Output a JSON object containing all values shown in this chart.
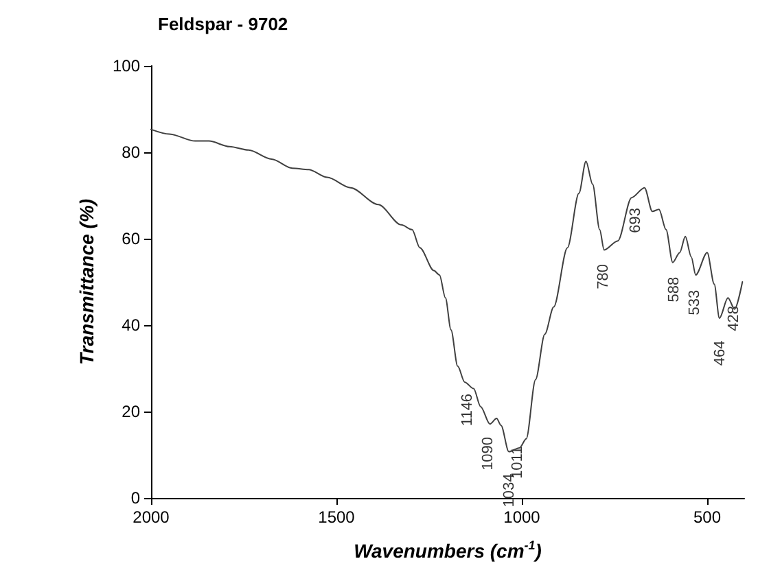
{
  "chart_data": {
    "type": "line",
    "title": "Feldspar - 9702",
    "xlabel": "Wavenumbers (cm$^{-1}$)",
    "ylabel": "Transmittance (%)",
    "x": [
      2000,
      1950,
      1881,
      1844,
      1788,
      1737,
      1675,
      1619,
      1575,
      1525,
      1462,
      1387,
      1325,
      1296,
      1275,
      1237,
      1222,
      1206,
      1191,
      1173,
      1154,
      1130,
      1111,
      1086,
      1068,
      1056,
      1035,
      1006,
      988,
      963,
      938,
      914,
      877,
      846,
      827,
      809,
      790,
      778,
      741,
      704,
      669,
      648,
      630,
      611,
      593,
      574,
      559,
      543,
      531,
      500,
      481,
      467,
      444,
      426,
      405
    ],
    "series": [
      {
        "color": "#404040",
        "values": [
          85.3,
          84.2,
          82.6,
          82.6,
          81.3,
          80.5,
          78.4,
          76.3,
          76.0,
          74.2,
          71.8,
          67.9,
          63.2,
          62.1,
          57.9,
          52.6,
          51.6,
          46.3,
          38.9,
          30.5,
          26.8,
          25.3,
          21.1,
          17.1,
          18.4,
          16.8,
          10.7,
          11.6,
          13.7,
          27.4,
          37.9,
          44.2,
          57.9,
          70.5,
          77.9,
          72.6,
          62.1,
          57.4,
          59.5,
          69.5,
          71.8,
          66.3,
          66.8,
          62.1,
          54.5,
          56.8,
          60.5,
          55.8,
          51.6,
          56.8,
          49.5,
          41.6,
          46.3,
          43.7,
          50.0
        ]
      }
    ],
    "xlim": [
      2000,
      400
    ],
    "xticks": [
      {
        "value": 2000,
        "label": "2000"
      },
      {
        "value": 1500,
        "label": "1500"
      },
      {
        "value": 1000,
        "label": "1000"
      },
      {
        "value": 500,
        "label": "500"
      }
    ],
    "ylim": [
      0,
      100
    ],
    "yticks": [
      0,
      20,
      40,
      60,
      80,
      100
    ],
    "grid": false,
    "marker": "none",
    "line_style": "solid",
    "annotations": [
      {
        "text": "1146",
        "x": 1146,
        "y": 27
      },
      {
        "text": "1090",
        "x": 1090,
        "y": 17
      },
      {
        "text": "1034",
        "x": 1034,
        "y": 10.7
      },
      {
        "text": "1011",
        "x": 1011,
        "y": 11
      },
      {
        "text": "780",
        "x": 780,
        "y": 57
      },
      {
        "text": "693",
        "x": 693,
        "y": 70
      },
      {
        "text": "588",
        "x": 588,
        "y": 54
      },
      {
        "text": "533",
        "x": 533,
        "y": 51
      },
      {
        "text": "464",
        "x": 464,
        "y": 41.5
      },
      {
        "text": "428",
        "x": 428,
        "y": 43.5
      }
    ]
  }
}
